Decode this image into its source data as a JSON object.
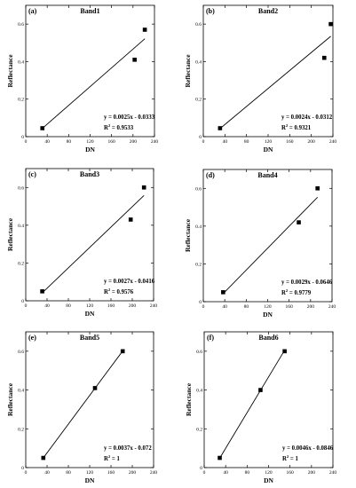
{
  "chart_data": [
    {
      "type": "scatter",
      "panel_label": "(a)",
      "title": "Band1",
      "xlabel": "DN",
      "ylabel": "Reflectance",
      "xlim": [
        0,
        240
      ],
      "ylim": [
        0,
        0.7
      ],
      "xticks": [
        "0",
        "40",
        "80",
        "120",
        "160",
        "200",
        "240"
      ],
      "yticks": [
        "0",
        "0.2",
        "0.4",
        "0.6"
      ],
      "points": [
        {
          "x": 31,
          "y": 0.045
        },
        {
          "x": 203,
          "y": 0.41
        },
        {
          "x": 222,
          "y": 0.57
        }
      ],
      "fit": {
        "slope": 0.0025,
        "intercept": -0.0333,
        "x_range": [
          31,
          222
        ]
      },
      "equation": "y = 0.0025x - 0.0333",
      "r2_label": "R",
      "r2_sup": "2",
      "r2_value": " = 0.9533"
    },
    {
      "type": "scatter",
      "panel_label": "(b)",
      "title": "Band2",
      "xlabel": "DN",
      "ylabel": "Reflectance",
      "xlim": [
        0,
        240
      ],
      "ylim": [
        0,
        0.7
      ],
      "xticks": [
        "0",
        "40",
        "80",
        "120",
        "160",
        "200",
        "240"
      ],
      "yticks": [
        "0",
        "0.2",
        "0.4",
        "0.6"
      ],
      "points": [
        {
          "x": 31,
          "y": 0.045
        },
        {
          "x": 224,
          "y": 0.42
        },
        {
          "x": 236,
          "y": 0.6
        }
      ],
      "fit": {
        "slope": 0.0024,
        "intercept": -0.0312,
        "x_range": [
          31,
          236
        ]
      },
      "equation": "y = 0.0024x - 0.0312",
      "r2_label": "R",
      "r2_sup": "2",
      "r2_value": " = 0.9321"
    },
    {
      "type": "scatter",
      "panel_label": "(c)",
      "title": "Band3",
      "xlabel": "DN",
      "ylabel": "Reflectance",
      "xlim": [
        0,
        240
      ],
      "ylim": [
        0,
        0.7
      ],
      "xticks": [
        "0",
        "40",
        "80",
        "120",
        "160",
        "200",
        "240"
      ],
      "yticks": [
        "0",
        "0.2",
        "0.4",
        "0.6"
      ],
      "points": [
        {
          "x": 31,
          "y": 0.05
        },
        {
          "x": 197,
          "y": 0.43
        },
        {
          "x": 222,
          "y": 0.6
        }
      ],
      "fit": {
        "slope": 0.0027,
        "intercept": -0.0416,
        "x_range": [
          31,
          222
        ]
      },
      "equation": "y = 0.0027x - 0.0416",
      "r2_label": "R",
      "r2_sup": "2",
      "r2_value": " = 0.9576"
    },
    {
      "type": "scatter",
      "panel_label": "(d)",
      "title": "Band4",
      "xlabel": "DN",
      "ylabel": "Reflectance",
      "xlim": [
        0,
        240
      ],
      "ylim": [
        0,
        0.7
      ],
      "xticks": [
        "0",
        "40",
        "80",
        "120",
        "160",
        "200",
        "240"
      ],
      "yticks": [
        "0",
        "0.2",
        "0.4",
        "0.6"
      ],
      "points": [
        {
          "x": 37,
          "y": 0.05
        },
        {
          "x": 178,
          "y": 0.42
        },
        {
          "x": 213,
          "y": 0.6
        }
      ],
      "fit": {
        "slope": 0.0029,
        "intercept": -0.0646,
        "x_range": [
          37,
          213
        ]
      },
      "equation": "y = 0.0029x - 0.0646",
      "r2_label": "R",
      "r2_sup": "2",
      "r2_value": " = 0.9779"
    },
    {
      "type": "scatter",
      "panel_label": "(e)",
      "title": "Band5",
      "xlabel": "DN",
      "ylabel": "Reflectance",
      "xlim": [
        0,
        240
      ],
      "ylim": [
        0,
        0.7
      ],
      "xticks": [
        "0",
        "40",
        "80",
        "120",
        "160",
        "200",
        "240"
      ],
      "yticks": [
        "0",
        "0.2",
        "0.4",
        "0.6"
      ],
      "points": [
        {
          "x": 33,
          "y": 0.05
        },
        {
          "x": 130,
          "y": 0.41
        },
        {
          "x": 182,
          "y": 0.6
        }
      ],
      "fit": {
        "slope": 0.0037,
        "intercept": -0.072,
        "x_range": [
          33,
          182
        ]
      },
      "equation": "y = 0.0037x - 0.072",
      "r2_label": "R",
      "r2_sup": "2",
      "r2_value": " = 1"
    },
    {
      "type": "scatter",
      "panel_label": "(f)",
      "title": "Band6",
      "xlabel": "DN",
      "ylabel": "Reflectance",
      "xlim": [
        0,
        240
      ],
      "ylim": [
        0,
        0.7
      ],
      "xticks": [
        "0",
        "40",
        "80",
        "120",
        "160",
        "200",
        "240"
      ],
      "yticks": [
        "0",
        "0.2",
        "0.4",
        "0.6"
      ],
      "points": [
        {
          "x": 29,
          "y": 0.05
        },
        {
          "x": 105,
          "y": 0.4
        },
        {
          "x": 150,
          "y": 0.6
        }
      ],
      "fit": {
        "slope": 0.0046,
        "intercept": -0.0846,
        "x_range": [
          29,
          150
        ]
      },
      "equation": "y = 0.0046x - 0.0846",
      "r2_label": "R",
      "r2_sup": "2",
      "r2_value": " = 1"
    }
  ]
}
